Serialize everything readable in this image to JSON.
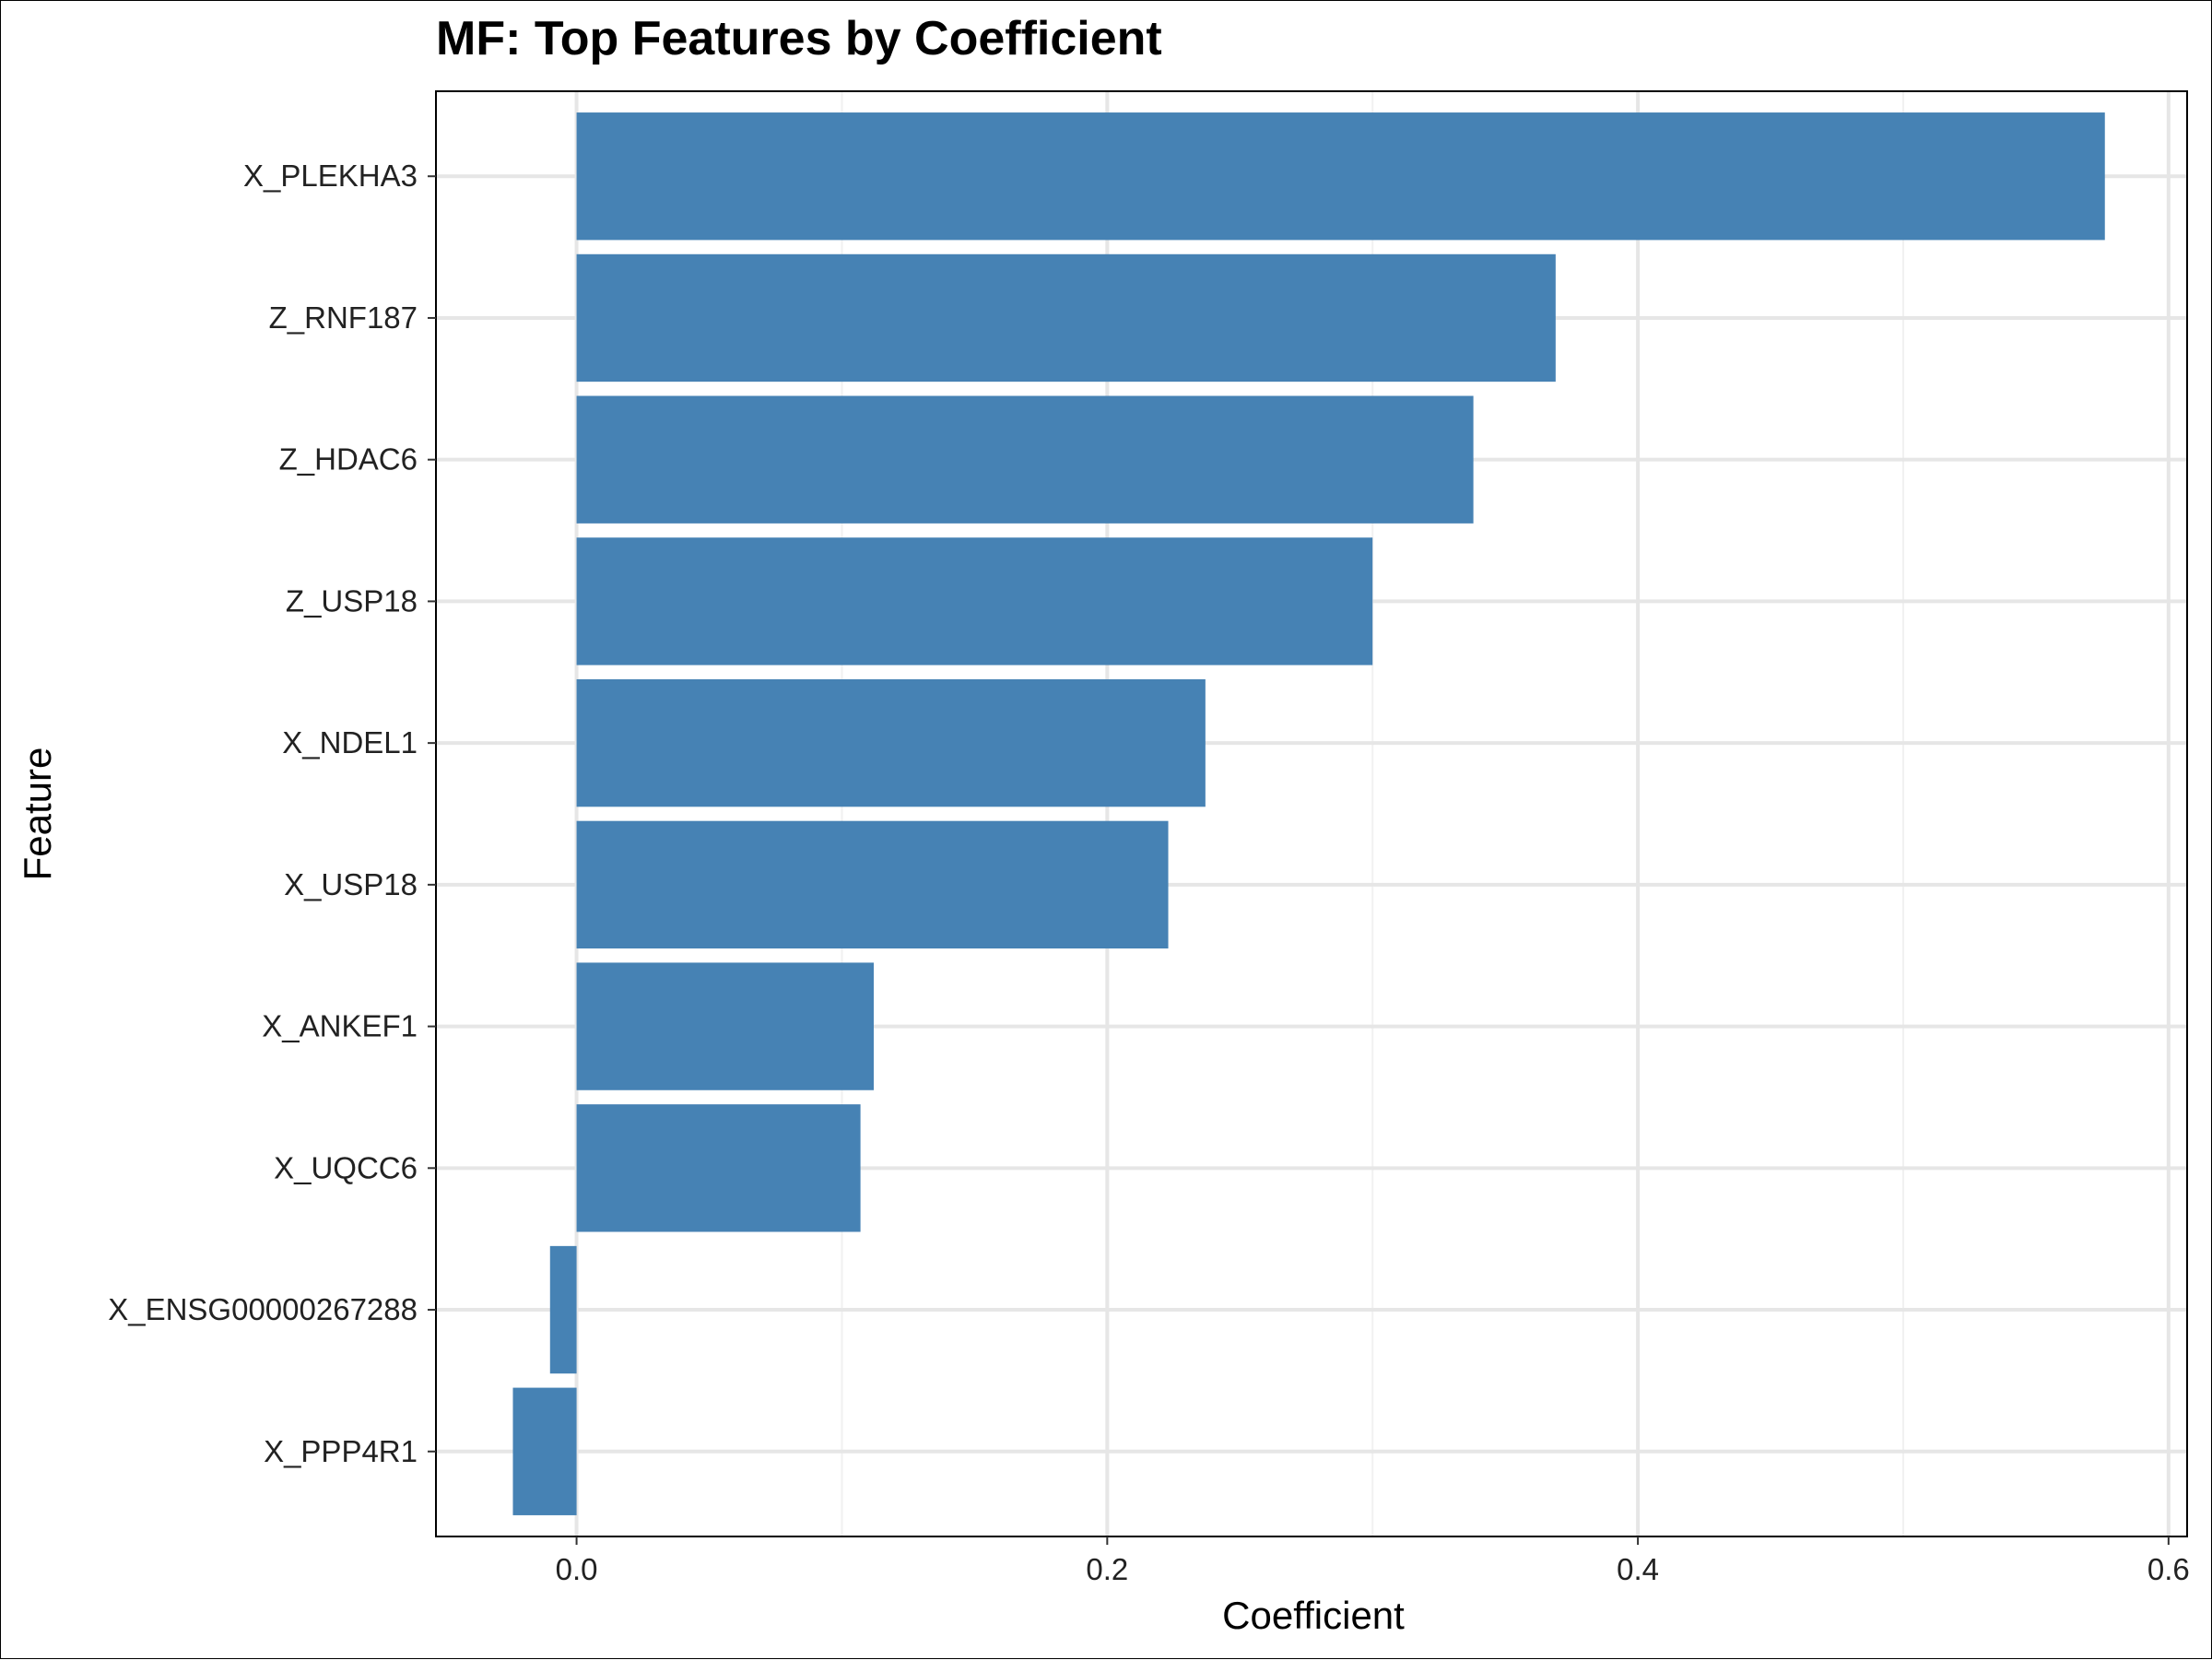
{
  "chart_data": {
    "type": "bar",
    "orientation": "horizontal",
    "title": "MF: Top Features by Coefficient",
    "xlabel": "Coefficient",
    "ylabel": "Feature",
    "categories": [
      "X_PLEKHA3",
      "Z_RNF187",
      "Z_HDAC6",
      "Z_USP18",
      "X_NDEL1",
      "X_USP18",
      "X_ANKEF1",
      "X_UQCC6",
      "X_ENSG00000267288",
      "X_PPP4R1"
    ],
    "values": [
      0.576,
      0.369,
      0.338,
      0.3,
      0.237,
      0.223,
      0.112,
      0.107,
      -0.01,
      -0.024
    ],
    "xlim": [
      -0.053,
      0.607
    ],
    "xticks": [
      0.0,
      0.2,
      0.4,
      0.6
    ],
    "xtick_labels": [
      "0.0",
      "0.2",
      "0.4",
      "0.6"
    ],
    "bar_color": "#4682b4",
    "grid": true,
    "legend": "none"
  }
}
